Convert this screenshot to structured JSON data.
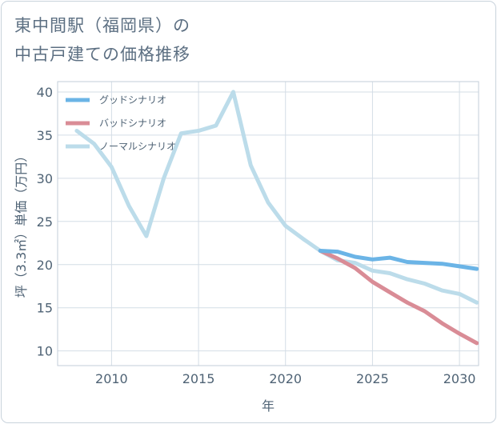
{
  "title": {
    "line1": "東中間駅（福岡県）の",
    "line2": "中古戸建ての価格推移"
  },
  "colors": {
    "good": "#6bb4e6",
    "bad": "#d98c96",
    "normal": "#bcdcea",
    "grid": "#d4dde6",
    "axis_text": "#4f6375"
  },
  "chart_data": {
    "type": "line",
    "title": "東中間駅（福岡県）の中古戸建ての価格推移",
    "xlabel": "年",
    "ylabel": "坪（3.3㎡）単価（万円）",
    "xlim": [
      2006.9,
      2031.1
    ],
    "ylim": [
      8.3,
      41.2
    ],
    "xticks": [
      2010,
      2015,
      2020,
      2025,
      2030
    ],
    "yticks": [
      10,
      15,
      20,
      25,
      30,
      35,
      40
    ],
    "grid": true,
    "legend_position": "top-left",
    "series": [
      {
        "name": "グッドシナリオ",
        "color": "#6bb4e6",
        "x": [
          2022,
          2023,
          2024,
          2025,
          2026,
          2027,
          2028,
          2029,
          2030,
          2031
        ],
        "y": [
          21.6,
          21.5,
          20.9,
          20.6,
          20.8,
          20.3,
          20.2,
          20.1,
          19.8,
          19.5
        ]
      },
      {
        "name": "バッドシナリオ",
        "color": "#d98c96",
        "x": [
          2022,
          2023,
          2024,
          2025,
          2026,
          2027,
          2028,
          2029,
          2030,
          2031
        ],
        "y": [
          21.6,
          20.7,
          19.6,
          18.0,
          16.8,
          15.6,
          14.6,
          13.2,
          12.0,
          10.9
        ]
      },
      {
        "name": "ノーマルシナリオ",
        "color": "#bcdcea",
        "x": [
          2008,
          2009,
          2010,
          2011,
          2012,
          2013,
          2014,
          2015,
          2016,
          2017,
          2018,
          2019,
          2020,
          2021,
          2022,
          2023,
          2024,
          2025,
          2026,
          2027,
          2028,
          2029,
          2030,
          2031
        ],
        "y": [
          35.5,
          34.0,
          31.3,
          26.8,
          23.3,
          30.0,
          35.2,
          35.5,
          36.1,
          40.0,
          31.5,
          27.2,
          24.5,
          23.0,
          21.6,
          20.5,
          20.2,
          19.3,
          19.0,
          18.3,
          17.8,
          17.0,
          16.6,
          15.6
        ]
      }
    ]
  }
}
